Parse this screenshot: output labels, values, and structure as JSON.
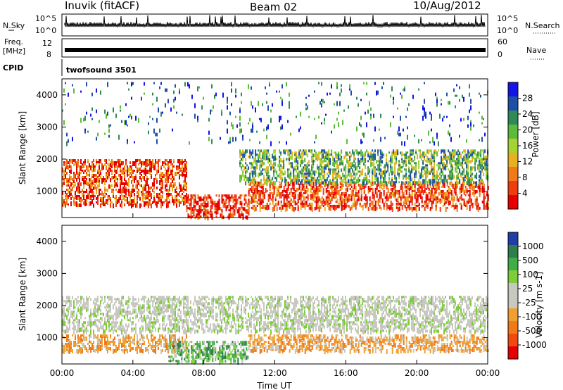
{
  "header": {
    "station": "Inuvik (fitACF)",
    "beam": "Beam 02",
    "date": "10/Aug/2012"
  },
  "noise_panel": {
    "left_label": "N.Sky",
    "right_label": "N.Search",
    "left_ticks": [
      "10^5",
      "10^0"
    ],
    "right_ticks": [
      "10^5",
      "10^0"
    ]
  },
  "freq_panel": {
    "left_label_top": "Freq.",
    "left_label_bottom": "[MHz]",
    "left_ticks": [
      "12",
      "8"
    ],
    "right_label": "Nave",
    "right_ticks": [
      "60",
      "0"
    ]
  },
  "cpid_panel": {
    "label": "CPID",
    "text": "twofsound 3501"
  },
  "chart_data": [
    {
      "type": "heatmap",
      "quantity": "Power",
      "ylabel": "Slant Range [km]",
      "yticks": [
        1000,
        2000,
        3000,
        4000
      ],
      "ylim": [
        180,
        4500
      ],
      "colorbar_label": "Power [dB]",
      "colorbar_ticks": [
        "4",
        "8",
        "12",
        "16",
        "20",
        "24",
        "28"
      ],
      "colorbar_colors": [
        "#1414e6",
        "#1e4fa8",
        "#2f8a5a",
        "#5dbb3a",
        "#a7d233",
        "#e8b020",
        "#f07a1a",
        "#f03d10",
        "#e60000"
      ],
      "clim": [
        0,
        30
      ],
      "regions": [
        {
          "t_start": 0.0,
          "t_end": 7.0,
          "r_min": 600,
          "r_max": 2000,
          "level": "high"
        },
        {
          "t_start": 7.0,
          "t_end": 10.5,
          "r_min": 200,
          "r_max": 900,
          "level": "max"
        },
        {
          "t_start": 10.5,
          "t_end": 24.0,
          "r_min": 500,
          "r_max": 1300,
          "level": "high"
        },
        {
          "t_start": 10.0,
          "t_end": 24.0,
          "r_min": 1300,
          "r_max": 2300,
          "level": "medium"
        },
        {
          "t_start": 0.0,
          "t_end": 24.0,
          "r_min": 2500,
          "r_max": 4400,
          "level": "low"
        }
      ]
    },
    {
      "type": "heatmap",
      "quantity": "Velocity",
      "ylabel": "Slant Range [km]",
      "xlabel": "Time UT",
      "xticks": [
        "00:00",
        "04:00",
        "08:00",
        "12:00",
        "16:00",
        "20:00",
        "00:00"
      ],
      "xlim": [
        0,
        24
      ],
      "yticks": [
        1000,
        2000,
        3000,
        4000
      ],
      "ylim": [
        180,
        4500
      ],
      "colorbar_label": "Velocity [m s-1]",
      "colorbar_ticks": [
        "1000",
        "500",
        "100",
        "25",
        "-25",
        "-100",
        "-500",
        "-1000"
      ],
      "colorbar_colors": [
        "#1f3fa8",
        "#2e7d4a",
        "#3fae45",
        "#7ccd39",
        "#c8c8c0",
        "#c8c8c0",
        "#f0a030",
        "#f07a1a",
        "#f04a10",
        "#e60000"
      ],
      "regions": [
        {
          "t_start": 0.0,
          "t_end": 7.0,
          "r_min": 600,
          "r_max": 1100,
          "level": "toward_small"
        },
        {
          "t_start": 6.0,
          "t_end": 10.5,
          "r_min": 300,
          "r_max": 900,
          "level": "away_small"
        },
        {
          "t_start": 10.5,
          "t_end": 24.0,
          "r_min": 600,
          "r_max": 1100,
          "level": "toward_small"
        },
        {
          "t_start": 0.0,
          "t_end": 24.0,
          "r_min": 1200,
          "r_max": 2300,
          "level": "near_zero"
        }
      ]
    }
  ],
  "colors": {
    "frame": "#000000",
    "ground_scatter": "#c8c8c0"
  }
}
